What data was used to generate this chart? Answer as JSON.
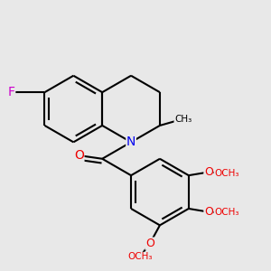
{
  "background_color": "#e8e8e8",
  "bond_color": "#000000",
  "bond_width": 1.5,
  "atom_colors": {
    "F": "#cc00cc",
    "N": "#0000ee",
    "O": "#ee0000",
    "C": "#000000"
  },
  "fig_size": [
    3.0,
    3.0
  ],
  "dpi": 100,
  "xlim": [
    -0.5,
    7.5
  ],
  "ylim": [
    -0.5,
    7.5
  ]
}
